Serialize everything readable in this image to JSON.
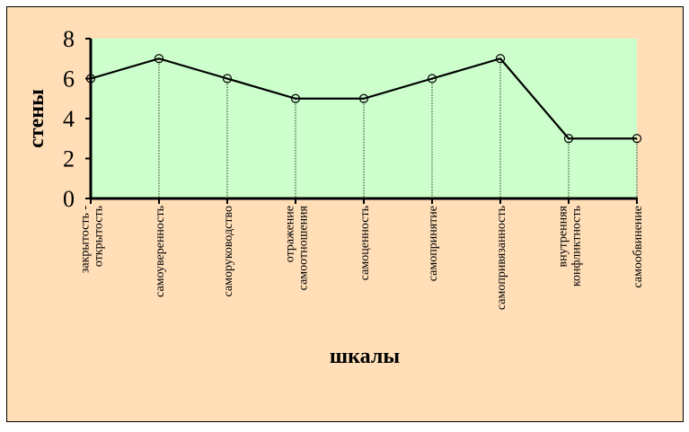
{
  "colors": {
    "background": "#FFDEB8",
    "plot_area": "#CCFFCC",
    "line": "#000000",
    "border": "#000000"
  },
  "chart_data": {
    "type": "line",
    "title": "",
    "xlabel": "шкалы",
    "ylabel": "стены",
    "ylim": [
      0,
      8
    ],
    "yticks": [
      0,
      2,
      4,
      6,
      8
    ],
    "grid": false,
    "drop_lines": true,
    "marker": "open-circle",
    "categories": [
      [
        "закрытость -",
        "открытость"
      ],
      [
        "самоуверенность"
      ],
      [
        "саморуководство"
      ],
      [
        "отражение",
        "самоотношения"
      ],
      [
        "самоценность"
      ],
      [
        "самопринятие"
      ],
      [
        "самопривязанность"
      ],
      [
        "внутренняя",
        "конфликтность"
      ],
      [
        "самообвинение"
      ]
    ],
    "series": [
      {
        "values": [
          6,
          7,
          6,
          5,
          5,
          6,
          7,
          3,
          3
        ]
      }
    ]
  }
}
